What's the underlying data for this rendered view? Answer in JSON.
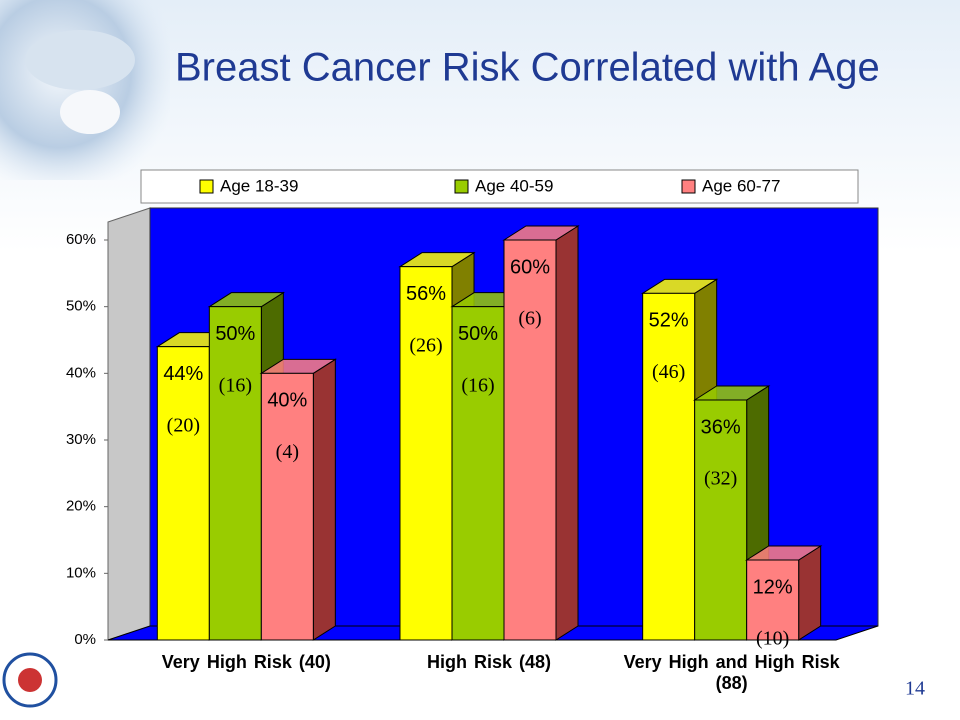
{
  "chart_data": {
    "type": "bar3d",
    "title": "Breast Cancer Risk Correlated with Age",
    "categories": [
      "Very High Risk   (40)",
      "High Risk   (48)",
      "Very High and High Risk\n(88)"
    ],
    "series": [
      {
        "name": "Age 18-39",
        "color": "#ffff00",
        "side_color": "#808000",
        "values": [
          44,
          56,
          52
        ],
        "value_labels": [
          "44%",
          "56%",
          "52%"
        ],
        "count_labels": [
          "(20)",
          "(26)",
          "(46)"
        ]
      },
      {
        "name": "Age 40-59",
        "color": "#99cc00",
        "side_color": "#4d6b00",
        "values": [
          50,
          50,
          36
        ],
        "value_labels": [
          "50%",
          "50%",
          "36%"
        ],
        "count_labels": [
          "(16)",
          "(16)",
          "(32)"
        ]
      },
      {
        "name": "Age 60-77",
        "color": "#ff8080",
        "side_color": "#993333",
        "values": [
          40,
          60,
          12
        ],
        "value_labels": [
          "40%",
          "60%",
          "12%"
        ],
        "count_labels": [
          "(4)",
          "(6)",
          "(10)"
        ]
      }
    ],
    "ylim": [
      0,
      60
    ],
    "yticks": [
      {
        "value": 0,
        "label": "0%"
      },
      {
        "value": 10,
        "label": "10%"
      },
      {
        "value": 20,
        "label": "20%"
      },
      {
        "value": 30,
        "label": "30%"
      },
      {
        "value": 40,
        "label": "40%"
      },
      {
        "value": 50,
        "label": "50%"
      },
      {
        "value": 60,
        "label": "60%"
      }
    ],
    "wall_color": "#0000ff"
  },
  "slide_number": "14"
}
